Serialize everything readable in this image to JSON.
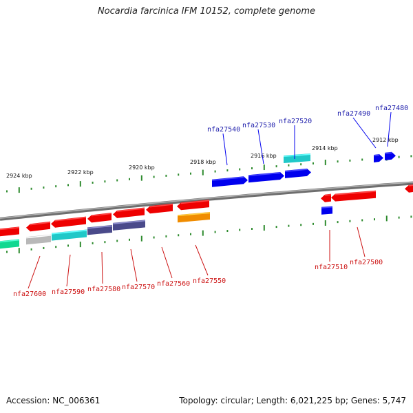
{
  "title": "Nocardia farcinica IFM 10152, complete genome",
  "accession": "Accession: NC_006361",
  "summary": "Topology: circular; Length: 6,021,225 bp; Genes: 5,747",
  "colors": {
    "backbone": "#808080",
    "tick": "#2e8b2e",
    "forward_gene": "#0000ee",
    "reverse_gene": "#ee0000",
    "forward_label": "#1a1aaa",
    "reverse_label": "#cc1111",
    "cyan": "#20c8c8",
    "grey": "#b8b8b8",
    "slate": "#4a4a8a",
    "orange": "#f08c00",
    "green": "#10d890"
  },
  "kbp_labels": [
    "2924 kbp",
    "2922 kbp",
    "2920 kbp",
    "2918 kbp",
    "2916 kbp",
    "2914 kbp",
    "2912 kbp"
  ],
  "forward_labels": [
    "nfa27540",
    "nfa27530",
    "nfa27520",
    "nfa27490",
    "nfa27480"
  ],
  "reverse_labels": [
    "nfa27600",
    "nfa27590",
    "nfa27580",
    "nfa27570",
    "nfa27560",
    "nfa27550",
    "nfa27510",
    "nfa27500"
  ]
}
